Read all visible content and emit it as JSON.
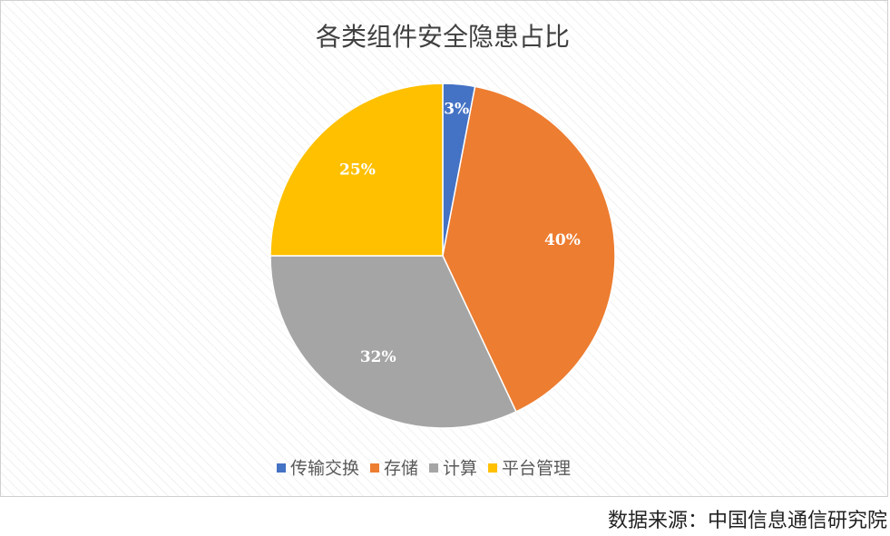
{
  "chart_data": {
    "type": "pie",
    "title": "各类组件安全隐患占比",
    "categories": [
      "传输交换",
      "存储",
      "计算",
      "平台管理"
    ],
    "values": [
      3,
      40,
      32,
      25
    ],
    "value_labels": [
      "3%",
      "40%",
      "32%",
      "25%"
    ],
    "colors": [
      "#4472c4",
      "#ed7d31",
      "#a5a5a5",
      "#ffc000"
    ],
    "legend": "bottom"
  },
  "source": "数据来源：中国信息通信研究院"
}
